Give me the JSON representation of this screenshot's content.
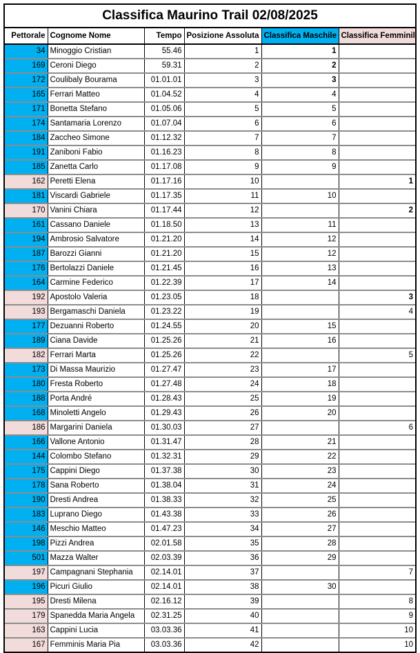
{
  "title": "Classifica Maurino Trail 02/08/2025",
  "colors": {
    "male": "#00b0f0",
    "female": "#f2dcdb"
  },
  "headers": {
    "bib": "Pettorale",
    "name": "Cognome Nome",
    "time": "Tempo",
    "overall": "Posizione Assoluta",
    "male": "Classifica Maschile",
    "female": "Classifica Femminile"
  },
  "rows": [
    {
      "bib": "34",
      "name": "Minoggio Cristian",
      "time": "55.46",
      "overall": "1",
      "male": "1",
      "female": "",
      "gender": "m"
    },
    {
      "bib": "169",
      "name": "Ceroni Diego",
      "time": "59.31",
      "overall": "2",
      "male": "2",
      "female": "",
      "gender": "m"
    },
    {
      "bib": "172",
      "name": "Coulibaly Bourama",
      "time": "01.01.01",
      "overall": "3",
      "male": "3",
      "female": "",
      "gender": "m"
    },
    {
      "bib": "165",
      "name": "Ferrari Matteo",
      "time": "01.04.52",
      "overall": "4",
      "male": "4",
      "female": "",
      "gender": "m"
    },
    {
      "bib": "171",
      "name": "Bonetta Stefano",
      "time": "01.05.06",
      "overall": "5",
      "male": "5",
      "female": "",
      "gender": "m"
    },
    {
      "bib": "174",
      "name": "Santamaria Lorenzo",
      "time": "01.07.04",
      "overall": "6",
      "male": "6",
      "female": "",
      "gender": "m"
    },
    {
      "bib": "184",
      "name": "Zaccheo Simone",
      "time": "01.12.32",
      "overall": "7",
      "male": "7",
      "female": "",
      "gender": "m"
    },
    {
      "bib": "191",
      "name": "Zaniboni Fabio",
      "time": "01.16.23",
      "overall": "8",
      "male": "8",
      "female": "",
      "gender": "m"
    },
    {
      "bib": "185",
      "name": "Zanetta Carlo",
      "time": "01.17.08",
      "overall": "9",
      "male": "9",
      "female": "",
      "gender": "m"
    },
    {
      "bib": "162",
      "name": "Peretti Elena",
      "time": "01.17.16",
      "overall": "10",
      "male": "",
      "female": "1",
      "gender": "f"
    },
    {
      "bib": "181",
      "name": "Viscardi Gabriele",
      "time": "01.17.35",
      "overall": "11",
      "male": "10",
      "female": "",
      "gender": "m"
    },
    {
      "bib": "170",
      "name": "Vanini Chiara",
      "time": "01.17.44",
      "overall": "12",
      "male": "",
      "female": "2",
      "gender": "f"
    },
    {
      "bib": "161",
      "name": "Cassano Daniele",
      "time": "01.18.50",
      "overall": "13",
      "male": "11",
      "female": "",
      "gender": "m"
    },
    {
      "bib": "194",
      "name": "Ambrosio Salvatore",
      "time": "01.21.20",
      "overall": "14",
      "male": "12",
      "female": "",
      "gender": "m"
    },
    {
      "bib": "187",
      "name": "Barozzi Gianni",
      "time": "01.21.20",
      "overall": "15",
      "male": "12",
      "female": "",
      "gender": "m"
    },
    {
      "bib": "176",
      "name": "Bertolazzi Daniele",
      "time": "01.21.45",
      "overall": "16",
      "male": "13",
      "female": "",
      "gender": "m"
    },
    {
      "bib": "164",
      "name": "Carmine Federico",
      "time": "01.22.39",
      "overall": "17",
      "male": "14",
      "female": "",
      "gender": "m"
    },
    {
      "bib": "192",
      "name": "Apostolo Valeria",
      "time": "01.23.05",
      "overall": "18",
      "male": "",
      "female": "3",
      "gender": "f"
    },
    {
      "bib": "193",
      "name": "Bergamaschi Daniela",
      "time": "01.23.22",
      "overall": "19",
      "male": "",
      "female": "4",
      "gender": "f"
    },
    {
      "bib": "177",
      "name": "Dezuanni Roberto",
      "time": "01.24.55",
      "overall": "20",
      "male": "15",
      "female": "",
      "gender": "m"
    },
    {
      "bib": "189",
      "name": "Ciana Davide",
      "time": "01.25.26",
      "overall": "21",
      "male": "16",
      "female": "",
      "gender": "m"
    },
    {
      "bib": "182",
      "name": "Ferrari Marta",
      "time": "01.25.26",
      "overall": "22",
      "male": "",
      "female": "5",
      "gender": "f"
    },
    {
      "bib": "173",
      "name": "Di Massa Maurizio",
      "time": "01.27.47",
      "overall": "23",
      "male": "17",
      "female": "",
      "gender": "m"
    },
    {
      "bib": "180",
      "name": "Fresta Roberto",
      "time": "01.27.48",
      "overall": "24",
      "male": "18",
      "female": "",
      "gender": "m"
    },
    {
      "bib": "188",
      "name": "Porta André",
      "time": "01.28.43",
      "overall": "25",
      "male": "19",
      "female": "",
      "gender": "m"
    },
    {
      "bib": "168",
      "name": "Minoletti Angelo",
      "time": "01.29.43",
      "overall": "26",
      "male": "20",
      "female": "",
      "gender": "m"
    },
    {
      "bib": "186",
      "name": "Margarini Daniela",
      "time": "01.30.03",
      "overall": "27",
      "male": "",
      "female": "6",
      "gender": "f"
    },
    {
      "bib": "166",
      "name": "Vallone Antonio",
      "time": "01.31.47",
      "overall": "28",
      "male": "21",
      "female": "",
      "gender": "m"
    },
    {
      "bib": "144",
      "name": "Colombo Stefano",
      "time": "01.32.31",
      "overall": "29",
      "male": "22",
      "female": "",
      "gender": "m"
    },
    {
      "bib": "175",
      "name": "Cappini Diego",
      "time": "01.37.38",
      "overall": "30",
      "male": "23",
      "female": "",
      "gender": "m"
    },
    {
      "bib": "178",
      "name": "Sana Roberto",
      "time": "01.38.04",
      "overall": "31",
      "male": "24",
      "female": "",
      "gender": "m"
    },
    {
      "bib": "190",
      "name": "Dresti Andrea",
      "time": "01.38.33",
      "overall": "32",
      "male": "25",
      "female": "",
      "gender": "m"
    },
    {
      "bib": "183",
      "name": "Luprano Diego",
      "time": "01.43.38",
      "overall": "33",
      "male": "26",
      "female": "",
      "gender": "m"
    },
    {
      "bib": "146",
      "name": "Meschio Matteo",
      "time": "01.47.23",
      "overall": "34",
      "male": "27",
      "female": "",
      "gender": "m"
    },
    {
      "bib": "198",
      "name": "Pizzi Andrea",
      "time": "02.01.58",
      "overall": "35",
      "male": "28",
      "female": "",
      "gender": "m"
    },
    {
      "bib": "501",
      "name": "Mazza Walter",
      "time": "02.03.39",
      "overall": "36",
      "male": "29",
      "female": "",
      "gender": "m"
    },
    {
      "bib": "197",
      "name": "Campagnani Stephania",
      "time": "02.14.01",
      "overall": "37",
      "male": "",
      "female": "7",
      "gender": "f"
    },
    {
      "bib": "196",
      "name": "Picuri Giulio",
      "time": "02.14.01",
      "overall": "38",
      "male": "30",
      "female": "",
      "gender": "m"
    },
    {
      "bib": "195",
      "name": "Dresti Milena",
      "time": "02.16.12",
      "overall": "39",
      "male": "",
      "female": "8",
      "gender": "f"
    },
    {
      "bib": "179",
      "name": "Spanedda Maria Angela",
      "time": "02.31.25",
      "overall": "40",
      "male": "",
      "female": "9",
      "gender": "f"
    },
    {
      "bib": "163",
      "name": "Cappini Lucia",
      "time": "03.03.36",
      "overall": "41",
      "male": "",
      "female": "10",
      "gender": "f"
    },
    {
      "bib": "167",
      "name": "Femminis Maria Pia",
      "time": "03.03.36",
      "overall": "42",
      "male": "",
      "female": "10",
      "gender": "f"
    }
  ]
}
